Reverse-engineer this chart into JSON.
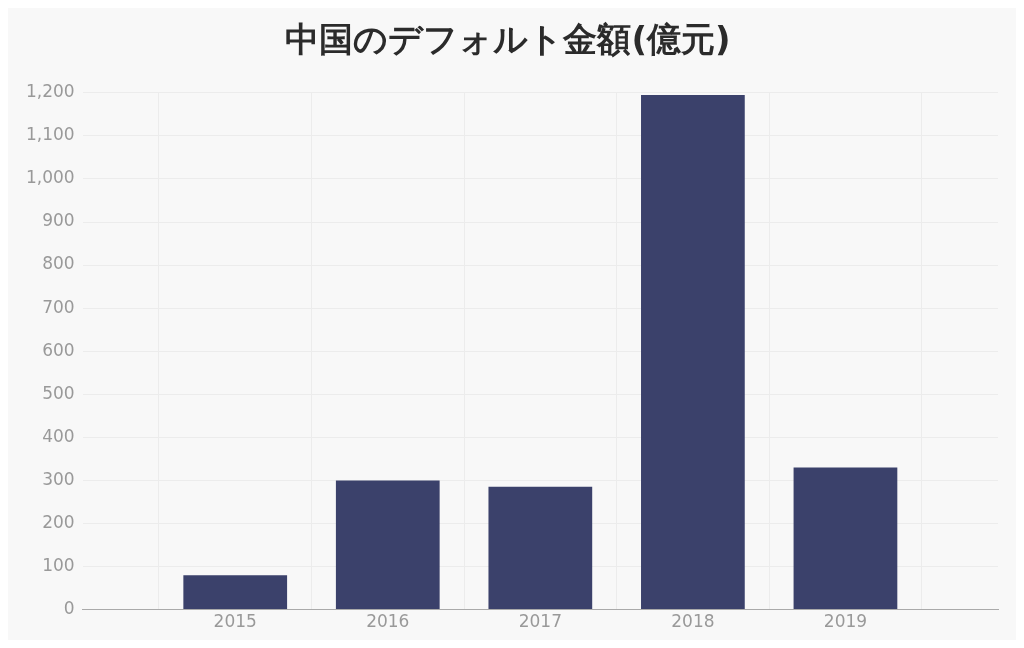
{
  "chart_data": {
    "type": "bar",
    "title": "中国のデフォルト金額(億元)",
    "x": [
      2015,
      2016,
      2017,
      2018,
      2019
    ],
    "values": [
      80,
      300,
      285,
      1195,
      330
    ],
    "color": "#3b416b",
    "xlim": [
      2014,
      2020
    ],
    "xticks": [
      2015,
      2016,
      2017,
      2018,
      2019
    ],
    "ylim": [
      0,
      1200
    ],
    "yticks": [
      0,
      100,
      200,
      300,
      400,
      500,
      600,
      700,
      800,
      900,
      {
        "value": 1000,
        "label": "1,000"
      },
      {
        "value": 1100,
        "label": "1,100"
      },
      {
        "value": 1200,
        "label": "1,200"
      }
    ],
    "grid": true
  }
}
